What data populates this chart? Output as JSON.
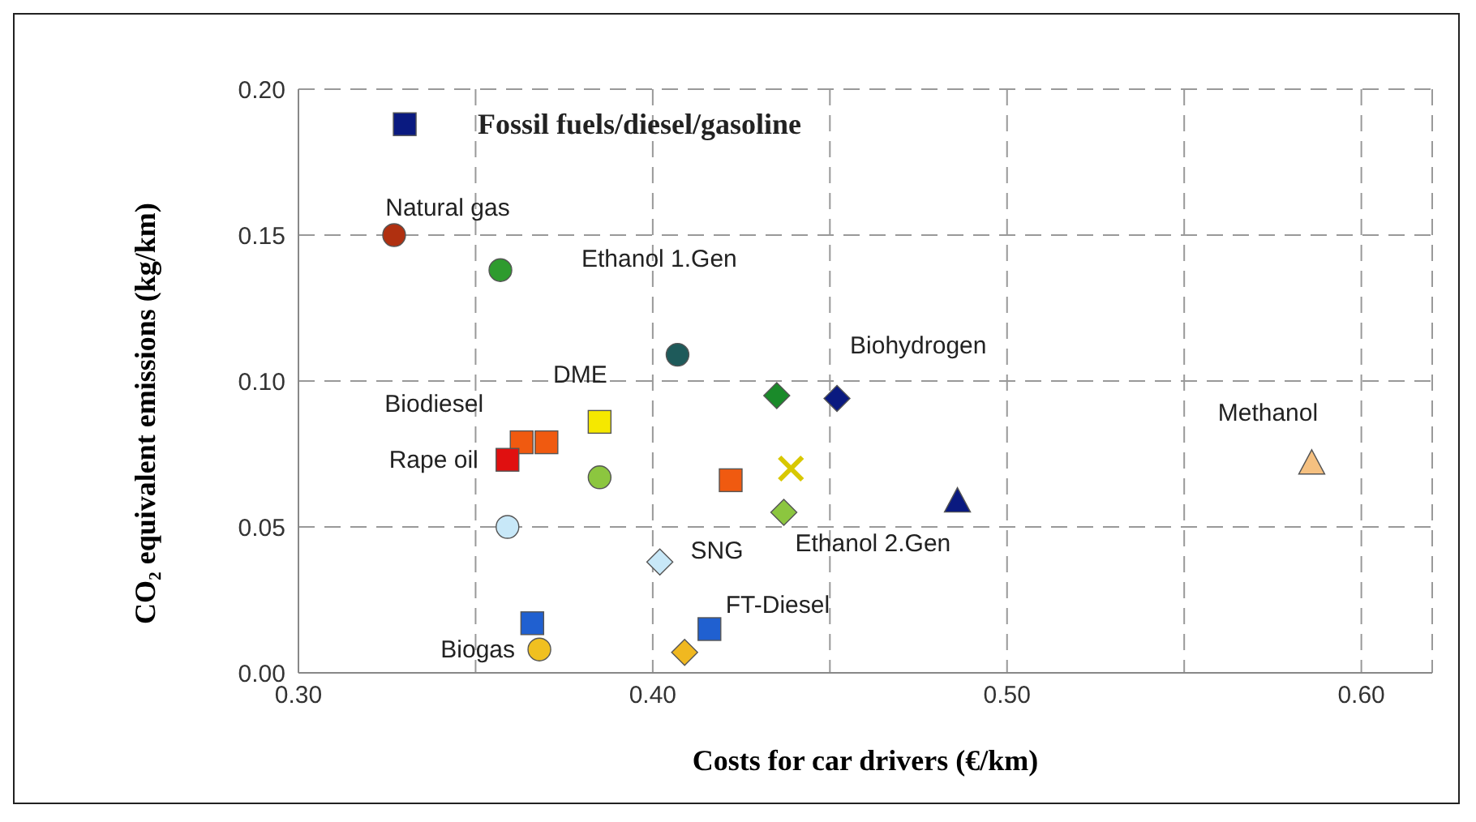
{
  "chart_data": {
    "type": "scatter",
    "xlabel": "Costs for car drivers (€/km)",
    "ylabel": "CO₂ equivalent emissions (kg/km)",
    "xlim": [
      0.3,
      0.62
    ],
    "xticks": [
      {
        "value": 0.3,
        "label": "0.30"
      },
      {
        "value": 0.35,
        "label": null
      },
      {
        "value": 0.4,
        "label": "0.40"
      },
      {
        "value": 0.45,
        "label": null
      },
      {
        "value": 0.5,
        "label": "0.50"
      },
      {
        "value": 0.55,
        "label": null
      },
      {
        "value": 0.6,
        "label": "0.60"
      }
    ],
    "ylim": [
      0,
      0.2
    ],
    "yticks": [
      {
        "value": 0,
        "label": "0.00"
      },
      {
        "value": 0.05,
        "label": "0.05"
      },
      {
        "value": 0.1,
        "label": "0.10"
      },
      {
        "value": 0.15,
        "label": "0.15"
      },
      {
        "value": 0.2,
        "label": "0.20"
      }
    ],
    "grid": true,
    "line_style": "dashed",
    "series": [
      {
        "name": "Fossil fuels/diesel/gasoline",
        "marker": "square",
        "color": "#0a1a80",
        "x": [
          0.33
        ],
        "values": [
          0.188
        ]
      },
      {
        "name": "Natural gas",
        "marker": "circle",
        "color": "#b03010",
        "x": [
          0.327
        ],
        "values": [
          0.15
        ]
      },
      {
        "name": "Ethanol 1.Gen",
        "marker": "circle",
        "color": "#2e9b2e",
        "colors": [
          "#2e9b2e",
          "#1e5a5a"
        ],
        "x": [
          0.357,
          0.407
        ],
        "values": [
          0.138,
          0.109
        ]
      },
      {
        "marker": "diamond",
        "color": "#1a8a2a",
        "x": [
          0.435
        ],
        "values": [
          0.095
        ]
      },
      {
        "name": "Biohydrogen",
        "marker": "diamond",
        "color": "#0a1a80",
        "x": [
          0.452
        ],
        "values": [
          0.094
        ]
      },
      {
        "marker": "triangle",
        "color": "#0a1a80",
        "x": [
          0.486
        ],
        "values": [
          0.059
        ]
      },
      {
        "name": "Methanol",
        "marker": "triangle",
        "color": "#f5c080",
        "x": [
          0.586
        ],
        "values": [
          0.072
        ]
      },
      {
        "name": "DME",
        "marker": "square",
        "color": "#f5e800",
        "x": [
          0.385
        ],
        "values": [
          0.086
        ]
      },
      {
        "marker": "cross",
        "color": "#d8c800",
        "x": [
          0.439
        ],
        "values": [
          0.07
        ]
      },
      {
        "name": "Biodiesel",
        "marker": "square",
        "color": "#f05a10",
        "x": [
          0.363,
          0.37,
          0.422
        ],
        "values": [
          0.079,
          0.079,
          0.066
        ]
      },
      {
        "name": "Rape oil",
        "marker": "square",
        "color": "#e01010",
        "x": [
          0.359
        ],
        "values": [
          0.073
        ]
      },
      {
        "name": "Ethanol 2.Gen",
        "marker": "diamond",
        "color": "#8cc63f",
        "x": [
          0.437
        ],
        "values": [
          0.055
        ]
      },
      {
        "marker": "circle",
        "color": "#8cc63f",
        "x": [
          0.385
        ],
        "values": [
          0.067
        ]
      },
      {
        "name": "SNG",
        "marker": "diamond",
        "color": "#c8e8f8",
        "x": [
          0.402
        ],
        "values": [
          0.038
        ]
      },
      {
        "marker": "circle",
        "color": "#c8e8f8",
        "x": [
          0.359
        ],
        "values": [
          0.05
        ]
      },
      {
        "name": "FT-Diesel",
        "marker": "square",
        "color": "#2060d0",
        "x": [
          0.366,
          0.416
        ],
        "values": [
          0.017,
          0.015
        ]
      },
      {
        "name": "Biogas",
        "marker": "circle",
        "color": "#f0c020",
        "x": [
          0.368
        ],
        "values": [
          0.008
        ]
      },
      {
        "marker": "diamond",
        "color": "#f0b820",
        "x": [
          0.409
        ],
        "values": [
          0.007
        ]
      }
    ]
  }
}
